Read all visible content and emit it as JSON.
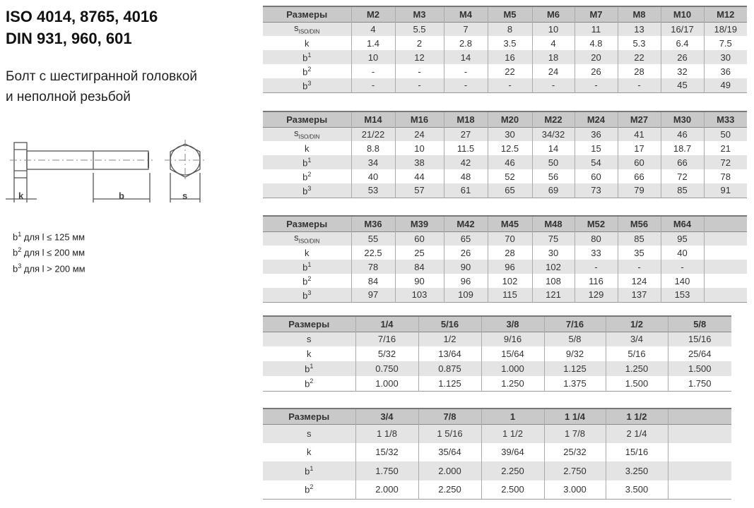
{
  "heading": {
    "title_line1": "ISO 4014, 8765, 4016",
    "title_line2": "DIN 931, 960, 601",
    "subtitle_line1": "Болт с шестигранной головкой",
    "subtitle_line2": "и неполной резьбой"
  },
  "drawing": {
    "label_k": "k",
    "label_b": "b",
    "label_s": "s"
  },
  "notes": [
    {
      "base": "b",
      "sup": "1",
      "text": " для l ≤ 125 мм"
    },
    {
      "base": "b",
      "sup": "2",
      "text": " для l ≤ 200 мм"
    },
    {
      "base": "b",
      "sup": "3",
      "text": " для l > 200 мм"
    }
  ],
  "tables": [
    {
      "headers": [
        "Размеры",
        "M2",
        "M3",
        "M4",
        "M5",
        "M6",
        "M7",
        "M8",
        "M10",
        "M12"
      ],
      "rows": [
        {
          "base": "s",
          "sub": "ISO/DIN",
          "values": [
            "4",
            "5.5",
            "7",
            "8",
            "10",
            "11",
            "13",
            "16/17",
            "18/19"
          ]
        },
        {
          "base": "k",
          "values": [
            "1.4",
            "2",
            "2.8",
            "3.5",
            "4",
            "4.8",
            "5.3",
            "6.4",
            "7.5"
          ]
        },
        {
          "base": "b",
          "sup": "1",
          "values": [
            "10",
            "12",
            "14",
            "16",
            "18",
            "20",
            "22",
            "26",
            "30"
          ]
        },
        {
          "base": "b",
          "sup": "2",
          "values": [
            "-",
            "-",
            "-",
            "22",
            "24",
            "26",
            "28",
            "32",
            "36"
          ]
        },
        {
          "base": "b",
          "sup": "3",
          "values": [
            "-",
            "-",
            "-",
            "-",
            "-",
            "-",
            "-",
            "45",
            "49"
          ]
        }
      ]
    },
    {
      "headers": [
        "Размеры",
        "M14",
        "M16",
        "M18",
        "M20",
        "M22",
        "M24",
        "M27",
        "M30",
        "M33"
      ],
      "rows": [
        {
          "base": "s",
          "sub": "ISO/DIN",
          "values": [
            "21/22",
            "24",
            "27",
            "30",
            "34/32",
            "36",
            "41",
            "46",
            "50"
          ]
        },
        {
          "base": "k",
          "values": [
            "8.8",
            "10",
            "11.5",
            "12.5",
            "14",
            "15",
            "17",
            "18.7",
            "21"
          ]
        },
        {
          "base": "b",
          "sup": "1",
          "values": [
            "34",
            "38",
            "42",
            "46",
            "50",
            "54",
            "60",
            "66",
            "72"
          ]
        },
        {
          "base": "b",
          "sup": "2",
          "values": [
            "40",
            "44",
            "48",
            "52",
            "56",
            "60",
            "66",
            "72",
            "78"
          ]
        },
        {
          "base": "b",
          "sup": "3",
          "values": [
            "53",
            "57",
            "61",
            "65",
            "69",
            "73",
            "79",
            "85",
            "91"
          ]
        }
      ]
    },
    {
      "headers": [
        "Размеры",
        "M36",
        "M39",
        "M42",
        "M45",
        "M48",
        "M52",
        "M56",
        "M64",
        ""
      ],
      "rows": [
        {
          "base": "s",
          "sub": "ISO/DIN",
          "values": [
            "55",
            "60",
            "65",
            "70",
            "75",
            "80",
            "85",
            "95",
            ""
          ]
        },
        {
          "base": "k",
          "values": [
            "22.5",
            "25",
            "26",
            "28",
            "30",
            "33",
            "35",
            "40",
            ""
          ]
        },
        {
          "base": "b",
          "sup": "1",
          "values": [
            "78",
            "84",
            "90",
            "96",
            "102",
            "-",
            "-",
            "-",
            ""
          ]
        },
        {
          "base": "b",
          "sup": "2",
          "values": [
            "84",
            "90",
            "96",
            "102",
            "108",
            "116",
            "124",
            "140",
            ""
          ]
        },
        {
          "base": "b",
          "sup": "3",
          "values": [
            "97",
            "103",
            "109",
            "115",
            "121",
            "129",
            "137",
            "153",
            ""
          ]
        }
      ]
    },
    {
      "headers": [
        "Размеры",
        "1/4",
        "5/16",
        "3/8",
        "7/16",
        "1/2",
        "5/8"
      ],
      "rows": [
        {
          "base": "s",
          "values": [
            "7/16",
            "1/2",
            "9/16",
            "5/8",
            "3/4",
            "15/16"
          ]
        },
        {
          "base": "k",
          "values": [
            "5/32",
            "13/64",
            "15/64",
            "9/32",
            "5/16",
            "25/64"
          ]
        },
        {
          "base": "b",
          "sup": "1",
          "values": [
            "0.750",
            "0.875",
            "1.000",
            "1.125",
            "1.250",
            "1.500"
          ]
        },
        {
          "base": "b",
          "sup": "2",
          "values": [
            "1.000",
            "1.125",
            "1.250",
            "1.375",
            "1.500",
            "1.750"
          ]
        }
      ]
    },
    {
      "headers": [
        "Размеры",
        "3/4",
        "7/8",
        "1",
        "1 1/4",
        "1 1/2",
        ""
      ],
      "rows": [
        {
          "base": "s",
          "values": [
            "1 1/8",
            "1 5/16",
            "1 1/2",
            "1 7/8",
            "2 1/4",
            ""
          ]
        },
        {
          "base": "k",
          "values": [
            "15/32",
            "35/64",
            "39/64",
            "25/32",
            "15/16",
            ""
          ]
        },
        {
          "base": "b",
          "sup": "1",
          "values": [
            "1.750",
            "2.000",
            "2.250",
            "2.750",
            "3.250",
            ""
          ]
        },
        {
          "base": "b",
          "sup": "2",
          "values": [
            "2.000",
            "2.250",
            "2.500",
            "3.000",
            "3.500",
            ""
          ]
        }
      ]
    }
  ]
}
